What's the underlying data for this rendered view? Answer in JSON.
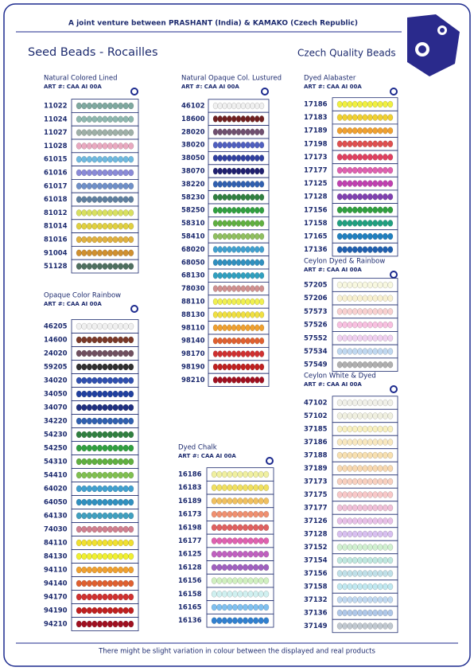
{
  "header": {
    "tagline": "A joint venture between PRASHANT (India) & KAMAKO (Czech Republic)",
    "title": "Seed Beads - Rocailles",
    "subtitle": "Czech Quality Beads"
  },
  "sections": [
    {
      "title": "Natural Colored Lined",
      "art": "ART #: CAA AI 00A",
      "items": [
        {
          "code": "11022",
          "color": "#7fa9a0"
        },
        {
          "code": "11024",
          "color": "#8fb8b0"
        },
        {
          "code": "11027",
          "color": "#9fb0a8"
        },
        {
          "code": "11028",
          "color": "#e9a9c0"
        },
        {
          "code": "61015",
          "color": "#6fb9e0"
        },
        {
          "code": "61016",
          "color": "#8a8ad8"
        },
        {
          "code": "61017",
          "color": "#7090c8"
        },
        {
          "code": "61018",
          "color": "#6080a0"
        },
        {
          "code": "81012",
          "color": "#d8e060"
        },
        {
          "code": "81014",
          "color": "#e0d040"
        },
        {
          "code": "81016",
          "color": "#e0b040"
        },
        {
          "code": "91004",
          "color": "#d09030"
        },
        {
          "code": "51128",
          "color": "#4f7060"
        }
      ]
    },
    {
      "title": "Opaque Color Rainbow",
      "art": "ART #: CAA AI 00A",
      "items": [
        {
          "code": "46205",
          "color": "#f0f0f0"
        },
        {
          "code": "14600",
          "color": "#7a3a2a"
        },
        {
          "code": "24020",
          "color": "#705060"
        },
        {
          "code": "59205",
          "color": "#303030"
        },
        {
          "code": "34020",
          "color": "#3050b0"
        },
        {
          "code": "34050",
          "color": "#2040a0"
        },
        {
          "code": "34070",
          "color": "#203080"
        },
        {
          "code": "34220",
          "color": "#3060b0"
        },
        {
          "code": "54230",
          "color": "#308040"
        },
        {
          "code": "54250",
          "color": "#30a040"
        },
        {
          "code": "54310",
          "color": "#60b040"
        },
        {
          "code": "54410",
          "color": "#80c050"
        },
        {
          "code": "64020",
          "color": "#40a0d0"
        },
        {
          "code": "64050",
          "color": "#3090c0"
        },
        {
          "code": "64130",
          "color": "#40a0c0"
        },
        {
          "code": "74030",
          "color": "#d08090"
        },
        {
          "code": "84110",
          "color": "#f0e030"
        },
        {
          "code": "84130",
          "color": "#f0f030"
        },
        {
          "code": "94110",
          "color": "#f0a030"
        },
        {
          "code": "94140",
          "color": "#e06030"
        },
        {
          "code": "94170",
          "color": "#d03030"
        },
        {
          "code": "94190",
          "color": "#c02020"
        },
        {
          "code": "94210",
          "color": "#a01020"
        }
      ]
    },
    {
      "title": "Natural Opaque Col. Lustured",
      "art": "ART #: CAA AI 00A",
      "items": [
        {
          "code": "46102",
          "color": "#f0f0f0"
        },
        {
          "code": "18600",
          "color": "#702020"
        },
        {
          "code": "28020",
          "color": "#705070"
        },
        {
          "code": "38020",
          "color": "#5060c0"
        },
        {
          "code": "38050",
          "color": "#3040a0"
        },
        {
          "code": "38070",
          "color": "#202070"
        },
        {
          "code": "38220",
          "color": "#3060b0"
        },
        {
          "code": "58230",
          "color": "#308040"
        },
        {
          "code": "58250",
          "color": "#30a040"
        },
        {
          "code": "58310",
          "color": "#60b040"
        },
        {
          "code": "58410",
          "color": "#90c060"
        },
        {
          "code": "68020",
          "color": "#40a0d0"
        },
        {
          "code": "68050",
          "color": "#3090c0"
        },
        {
          "code": "68130",
          "color": "#30a0c0"
        },
        {
          "code": "78030",
          "color": "#d09090"
        },
        {
          "code": "88110",
          "color": "#f0f050"
        },
        {
          "code": "88130",
          "color": "#f0e040"
        },
        {
          "code": "98110",
          "color": "#f0a030"
        },
        {
          "code": "98140",
          "color": "#e06030"
        },
        {
          "code": "98170",
          "color": "#d03030"
        },
        {
          "code": "98190",
          "color": "#c02020"
        },
        {
          "code": "98210",
          "color": "#a01020"
        }
      ]
    },
    {
      "title": "Dyed Chalk",
      "art": "ART #: CAA AI 00A",
      "items": [
        {
          "code": "16186",
          "color": "#f0f0a0"
        },
        {
          "code": "16183",
          "color": "#f0e060"
        },
        {
          "code": "16189",
          "color": "#f0c060"
        },
        {
          "code": "16173",
          "color": "#f09070"
        },
        {
          "code": "16198",
          "color": "#e06060"
        },
        {
          "code": "16177",
          "color": "#e060b0"
        },
        {
          "code": "16125",
          "color": "#c060c0"
        },
        {
          "code": "16128",
          "color": "#a060c0"
        },
        {
          "code": "16156",
          "color": "#d0f0c0"
        },
        {
          "code": "16158",
          "color": "#d0f0f0"
        },
        {
          "code": "16165",
          "color": "#80c0f0"
        },
        {
          "code": "16136",
          "color": "#3080d0"
        }
      ]
    },
    {
      "title": "Dyed Alabaster",
      "art": "ART #: CAA AI 00A",
      "items": [
        {
          "code": "17186",
          "color": "#f0f040"
        },
        {
          "code": "17183",
          "color": "#f0d030"
        },
        {
          "code": "17189",
          "color": "#f0a030"
        },
        {
          "code": "17198",
          "color": "#e05050"
        },
        {
          "code": "17173",
          "color": "#e04060"
        },
        {
          "code": "17177",
          "color": "#e060b0"
        },
        {
          "code": "17125",
          "color": "#c040b0"
        },
        {
          "code": "17128",
          "color": "#8040b0"
        },
        {
          "code": "17156",
          "color": "#30a040"
        },
        {
          "code": "17158",
          "color": "#20a080"
        },
        {
          "code": "17165",
          "color": "#2080c0"
        },
        {
          "code": "17136",
          "color": "#2060b0"
        }
      ]
    },
    {
      "title": "Ceylon Dyed & Rainbow",
      "art": "ART #: CAA AI 00A",
      "items": [
        {
          "code": "57205",
          "color": "#f8f8e0"
        },
        {
          "code": "57206",
          "color": "#f8f0d0"
        },
        {
          "code": "57573",
          "color": "#f8d0d0"
        },
        {
          "code": "57526",
          "color": "#f8c0e0"
        },
        {
          "code": "57552",
          "color": "#f0d0f0"
        },
        {
          "code": "57534",
          "color": "#c0d8f0"
        },
        {
          "code": "57549",
          "color": "#b0b0b0"
        }
      ]
    },
    {
      "title": "Ceylon White & Dyed",
      "art": "ART #: CAA AI 00A",
      "items": [
        {
          "code": "47102",
          "color": "#f0f0e8"
        },
        {
          "code": "57102",
          "color": "#f0f0e0"
        },
        {
          "code": "37185",
          "color": "#f8f0c0"
        },
        {
          "code": "37186",
          "color": "#f8e8c0"
        },
        {
          "code": "37188",
          "color": "#f8e0b0"
        },
        {
          "code": "37189",
          "color": "#f8d8b0"
        },
        {
          "code": "37173",
          "color": "#f8d0c0"
        },
        {
          "code": "37175",
          "color": "#f8c8c8"
        },
        {
          "code": "37177",
          "color": "#f0c0d8"
        },
        {
          "code": "37126",
          "color": "#e8c0e8"
        },
        {
          "code": "37128",
          "color": "#d8c0f0"
        },
        {
          "code": "37152",
          "color": "#d0f0d0"
        },
        {
          "code": "37154",
          "color": "#c0e8e0"
        },
        {
          "code": "37156",
          "color": "#c0e0e8"
        },
        {
          "code": "37158",
          "color": "#c0e8f0"
        },
        {
          "code": "37132",
          "color": "#c0d8f0"
        },
        {
          "code": "37136",
          "color": "#b0c8e8"
        },
        {
          "code": "37149",
          "color": "#c0c8d0"
        }
      ]
    }
  ],
  "footer": "There might be slight variation in colour between the displayed and real products"
}
